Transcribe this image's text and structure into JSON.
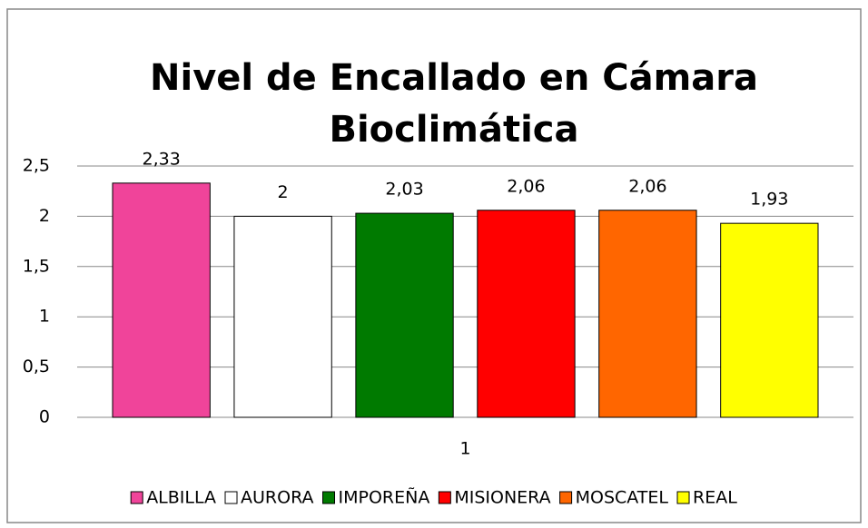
{
  "chart_data": {
    "type": "bar",
    "title": [
      "Nivel de Encallado en Cámara",
      "Bioclimática"
    ],
    "categories": [
      "1"
    ],
    "series": [
      {
        "name": "ALBILLA",
        "color": "#f0449a",
        "values": [
          2.33
        ],
        "value_labels": [
          "2,33"
        ]
      },
      {
        "name": "AURORA",
        "color": "#ffffff",
        "values": [
          2
        ],
        "value_labels": [
          "2"
        ]
      },
      {
        "name": "IMPOREÑA",
        "color": "#007a00",
        "values": [
          2.03
        ],
        "value_labels": [
          "2,03"
        ]
      },
      {
        "name": "MISIONERA",
        "color": "#ff0000",
        "values": [
          2.06
        ],
        "value_labels": [
          "2,06"
        ]
      },
      {
        "name": "MOSCATEL",
        "color": "#ff6600",
        "values": [
          2.06
        ],
        "value_labels": [
          "2,06"
        ]
      },
      {
        "name": "REAL",
        "color": "#ffff00",
        "values": [
          1.93
        ],
        "value_labels": [
          "1,93"
        ]
      }
    ],
    "ylim": [
      0,
      2.5
    ],
    "yticks": [
      0,
      {
        "value": 0.5,
        "label": "0,5"
      },
      1,
      {
        "value": 1.5,
        "label": "1,5"
      },
      2,
      {
        "value": 2.5,
        "label": "2,5"
      }
    ],
    "grid": true,
    "legend": "bottom"
  }
}
